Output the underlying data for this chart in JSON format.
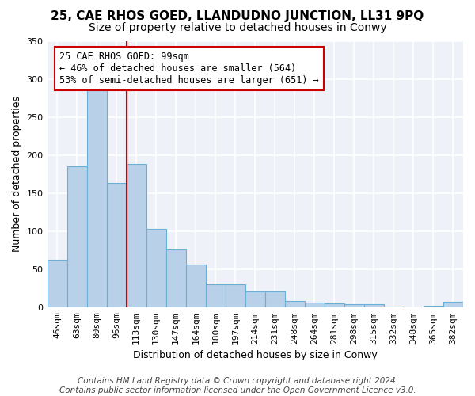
{
  "title": "25, CAE RHOS GOED, LLANDUDNO JUNCTION, LL31 9PQ",
  "subtitle": "Size of property relative to detached houses in Conwy",
  "xlabel": "Distribution of detached houses by size in Conwy",
  "ylabel": "Number of detached properties",
  "footer_line1": "Contains HM Land Registry data © Crown copyright and database right 2024.",
  "footer_line2": "Contains public sector information licensed under the Open Government Licence v3.0.",
  "categories": [
    "46sqm",
    "63sqm",
    "80sqm",
    "96sqm",
    "113sqm",
    "130sqm",
    "147sqm",
    "164sqm",
    "180sqm",
    "197sqm",
    "214sqm",
    "231sqm",
    "248sqm",
    "264sqm",
    "281sqm",
    "298sqm",
    "315sqm",
    "332sqm",
    "348sqm",
    "365sqm",
    "382sqm"
  ],
  "values": [
    63,
    185,
    292,
    163,
    188,
    103,
    76,
    56,
    30,
    30,
    21,
    21,
    9,
    7,
    5,
    4,
    4,
    1,
    0,
    2,
    8
  ],
  "bar_color": "#b8d0e8",
  "bar_edge_color": "#6baed6",
  "red_line_x": 3.5,
  "annotation_line1": "25 CAE RHOS GOED: 99sqm",
  "annotation_line2": "← 46% of detached houses are smaller (564)",
  "annotation_line3": "53% of semi-detached houses are larger (651) →",
  "annotation_box_color": "#ffffff",
  "annotation_box_edge": "#cc0000",
  "red_line_color": "#cc0000",
  "ylim": [
    0,
    350
  ],
  "background_color": "#eef2f8",
  "grid_color": "#ffffff",
  "title_fontsize": 11,
  "subtitle_fontsize": 10,
  "axis_label_fontsize": 9,
  "tick_fontsize": 8,
  "annotation_fontsize": 8.5,
  "footer_fontsize": 7.5
}
